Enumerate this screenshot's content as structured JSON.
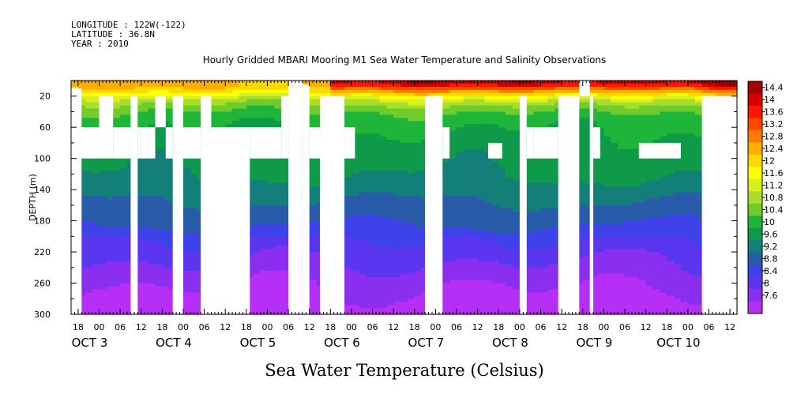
{
  "header": {
    "longitude": "LONGITUDE : 122W(-122)",
    "latitude": "LATITUDE : 36.8N",
    "year": "YEAR : 2010"
  },
  "chart_data": {
    "type": "heatmap",
    "title": "Hourly Gridded MBARI Mooring M1 Sea Water Temperature and Salinity Observations",
    "xlabel": "Sea Water Temperature (Celsius)",
    "ylabel": "DEPTH (m)",
    "y_reversed": true,
    "ylim": [
      300,
      0
    ],
    "xlim_hours_since_oct2_18": [
      -2,
      188
    ],
    "y_ticks": [
      20,
      60,
      100,
      140,
      180,
      220,
      260,
      300
    ],
    "x_tick_labels": [
      "18",
      "00",
      "06",
      "12",
      "18",
      "00",
      "06",
      "12",
      "18",
      "00",
      "06",
      "12",
      "18",
      "00",
      "06",
      "12",
      "18",
      "00",
      "06",
      "12",
      "18",
      "00",
      "06",
      "12",
      "18",
      "00",
      "06",
      "12",
      "18",
      "00",
      "06",
      "12"
    ],
    "day_labels": [
      {
        "label": "OCT  3",
        "hour": 6
      },
      {
        "label": "OCT  4",
        "hour": 30
      },
      {
        "label": "OCT  5",
        "hour": 54
      },
      {
        "label": "OCT  6",
        "hour": 78
      },
      {
        "label": "OCT  7",
        "hour": 102
      },
      {
        "label": "OCT  8",
        "hour": 126
      },
      {
        "label": "OCT  9",
        "hour": 150
      },
      {
        "label": "OCT 10",
        "hour": 174
      }
    ],
    "colorbar": {
      "levels": [
        "14.4",
        "14",
        "13.6",
        "13.2",
        "12.8",
        "12.4",
        "12",
        "11.6",
        "11.2",
        "10.8",
        "10.4",
        "10",
        "9.6",
        "9.2",
        "8.8",
        "8.4",
        "8",
        "7.6"
      ],
      "colors": [
        "#a40000",
        "#d20000",
        "#ff1500",
        "#ff4800",
        "#ff7b00",
        "#ffae00",
        "#ffd800",
        "#ffff00",
        "#d8ef20",
        "#a8dd28",
        "#6fcc2c",
        "#1fb53a",
        "#0f9a4a",
        "#137f78",
        "#285ca8",
        "#3d43e8",
        "#5a36f0",
        "#8a2ef0",
        "#b52ff5"
      ],
      "vmin": 7.6,
      "vmax": 14.4
    },
    "temperature_profile": {
      "depths": [
        8,
        16,
        24,
        32,
        40,
        50,
        60,
        75,
        90,
        110,
        130,
        150,
        170,
        190,
        210,
        230,
        250,
        270,
        290,
        300
      ],
      "base_temps": [
        12.6,
        12.0,
        11.3,
        10.9,
        10.6,
        10.4,
        10.3,
        10.15,
        10.05,
        9.95,
        9.8,
        9.55,
        9.3,
        9.05,
        8.8,
        8.55,
        8.3,
        8.1,
        7.9,
        7.8
      ]
    },
    "surface_warm_hours": [
      76,
      142
    ]
  }
}
